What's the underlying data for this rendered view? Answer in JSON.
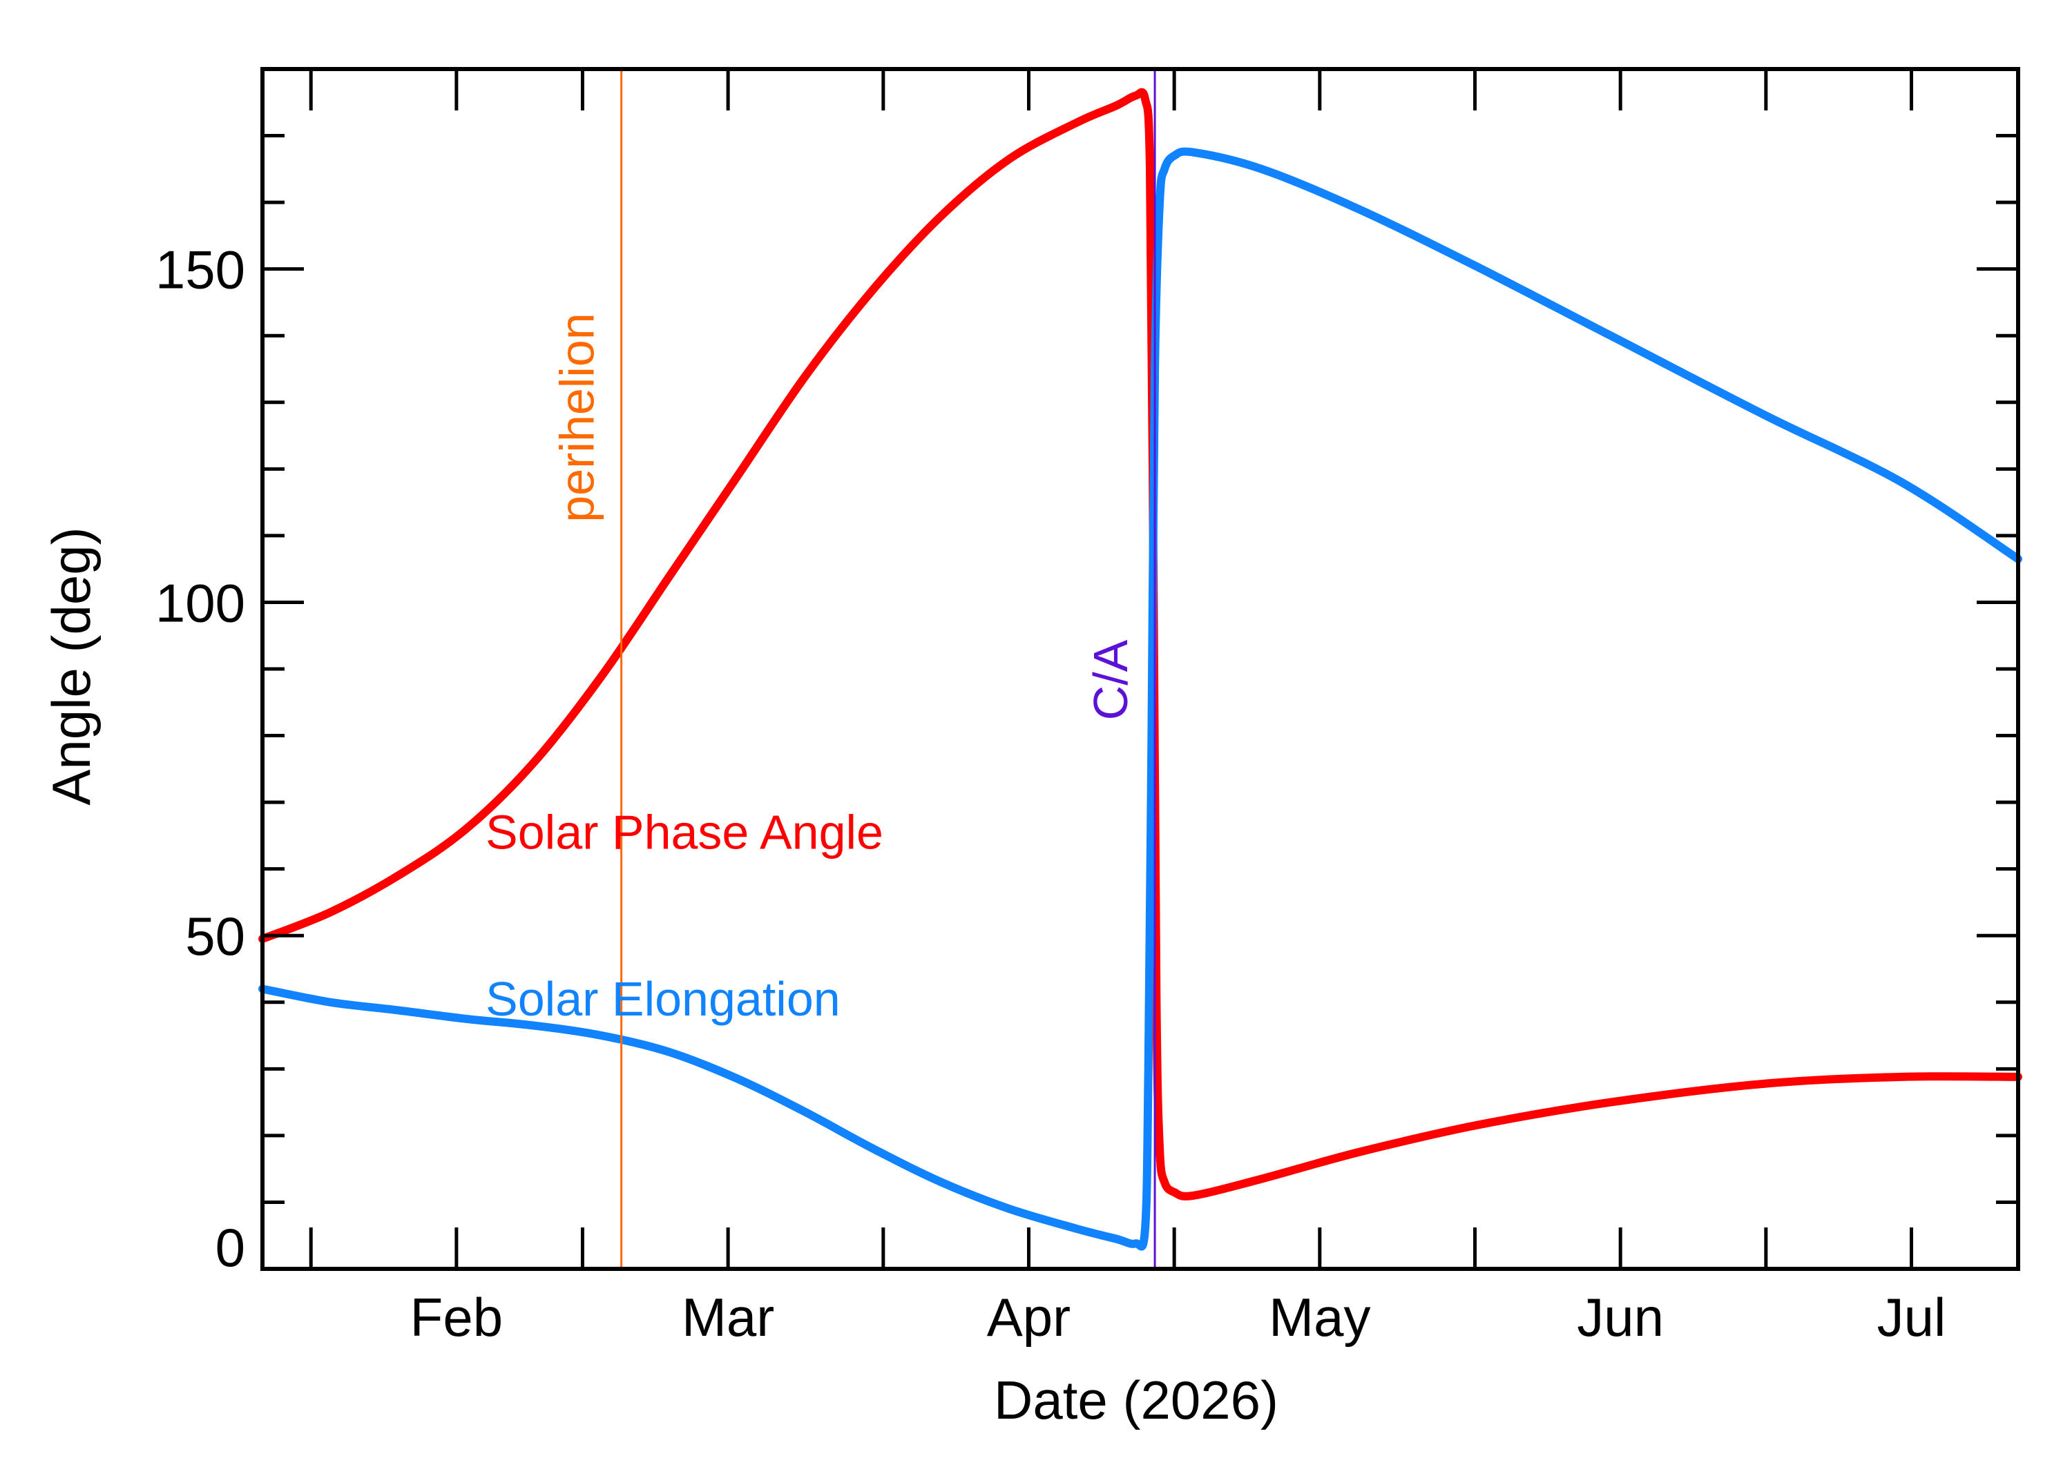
{
  "chart_data": {
    "type": "line",
    "xlabel": "Date (2026)",
    "ylabel": "Angle (deg)",
    "x_axis": {
      "type": "date",
      "start": "2026-01-27",
      "end": "2026-07-27",
      "month_ticks": [
        {
          "label": "Feb",
          "date": "2026-02-01"
        },
        {
          "label": "Mar",
          "date": "2026-03-01"
        },
        {
          "label": "Apr",
          "date": "2026-04-01"
        },
        {
          "label": "May",
          "date": "2026-05-01"
        },
        {
          "label": "Jun",
          "date": "2026-06-01"
        },
        {
          "label": "Jul",
          "date": "2026-07-01"
        }
      ]
    },
    "ylim": [
      0,
      180
    ],
    "y_ticks": [
      0,
      50,
      100,
      150
    ],
    "y_minor_step": 10,
    "grid": false,
    "legend": "inline labels",
    "series": [
      {
        "name": "Solar Phase Angle",
        "color": "#ff0000",
        "points": [
          [
            "2026-01-27",
            49.5
          ],
          [
            "2026-02-03",
            53.5
          ],
          [
            "2026-02-10",
            59
          ],
          [
            "2026-02-17",
            66
          ],
          [
            "2026-02-24",
            76
          ],
          [
            "2026-03-03",
            89
          ],
          [
            "2026-03-10",
            104
          ],
          [
            "2026-03-17",
            119
          ],
          [
            "2026-03-24",
            134
          ],
          [
            "2026-03-31",
            147
          ],
          [
            "2026-04-07",
            158
          ],
          [
            "2026-04-14",
            166.5
          ],
          [
            "2026-04-21",
            172
          ],
          [
            "2026-04-25",
            174.5
          ],
          [
            "2026-04-27",
            176
          ],
          [
            "2026-04-28",
            175.5
          ],
          [
            "2026-04-28T12:00",
            165
          ],
          [
            "2026-04-28T20:00",
            110
          ],
          [
            "2026-04-29T04:00",
            40
          ],
          [
            "2026-04-29T12:00",
            18
          ],
          [
            "2026-04-30",
            13
          ],
          [
            "2026-05-01",
            11.5
          ],
          [
            "2026-05-03",
            11
          ],
          [
            "2026-05-10",
            13.5
          ],
          [
            "2026-05-20",
            17.5
          ],
          [
            "2026-06-01",
            21.5
          ],
          [
            "2026-06-15",
            25
          ],
          [
            "2026-07-01",
            27.8
          ],
          [
            "2026-07-15",
            28.8
          ],
          [
            "2026-07-27",
            28.8
          ]
        ]
      },
      {
        "name": "Solar Elongation",
        "color": "#1183ff",
        "points": [
          [
            "2026-01-27",
            42
          ],
          [
            "2026-02-03",
            40
          ],
          [
            "2026-02-10",
            38.8
          ],
          [
            "2026-02-17",
            37.5
          ],
          [
            "2026-02-24",
            36.5
          ],
          [
            "2026-03-03",
            35
          ],
          [
            "2026-03-10",
            32.5
          ],
          [
            "2026-03-17",
            28.5
          ],
          [
            "2026-03-24",
            23.5
          ],
          [
            "2026-03-31",
            18
          ],
          [
            "2026-04-07",
            13
          ],
          [
            "2026-04-14",
            9
          ],
          [
            "2026-04-21",
            6
          ],
          [
            "2026-04-25",
            4.5
          ],
          [
            "2026-04-27",
            3.8
          ],
          [
            "2026-04-28",
            6
          ],
          [
            "2026-04-28T08:00",
            30
          ],
          [
            "2026-04-28T16:00",
            80
          ],
          [
            "2026-04-29",
            135
          ],
          [
            "2026-04-29T12:00",
            160
          ],
          [
            "2026-04-30",
            165
          ],
          [
            "2026-05-01",
            167
          ],
          [
            "2026-05-03",
            167.5
          ],
          [
            "2026-05-10",
            165
          ],
          [
            "2026-05-20",
            159
          ],
          [
            "2026-06-01",
            150.5
          ],
          [
            "2026-06-15",
            140
          ],
          [
            "2026-07-01",
            128
          ],
          [
            "2026-07-15",
            118
          ],
          [
            "2026-07-27",
            106.5
          ]
        ]
      }
    ],
    "annotations": [
      {
        "label": "perihelion",
        "date": "2026-03-05",
        "color": "#ff6a00"
      },
      {
        "label": "C/A",
        "date": "2026-04-29",
        "color": "#5b12d6"
      }
    ],
    "series_labels": [
      {
        "text": "Solar Phase Angle",
        "date": "2026-02-19",
        "y": 63,
        "color": "#ff0000"
      },
      {
        "text": "Solar Elongation",
        "date": "2026-02-19",
        "y": 38,
        "color": "#1183ff"
      }
    ]
  }
}
